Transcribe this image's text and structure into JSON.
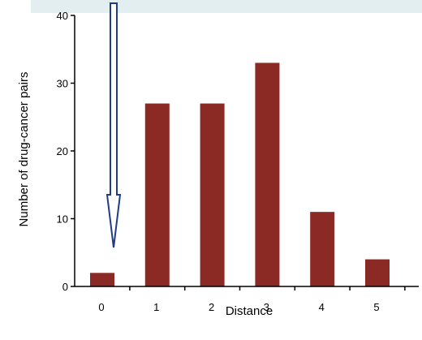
{
  "colors": {
    "bar": "#8b2a25",
    "axis": "#000000",
    "arrow_stroke": "#1f3b8a",
    "arrow_fill": "#ffffff",
    "top_band": "#e3eef1"
  },
  "annotation": {
    "type": "arrow-down",
    "points_to_category": "0"
  },
  "chart_data": {
    "type": "bar",
    "title": "",
    "xlabel": "Distance",
    "ylabel": "Number of drug-cancer pairs",
    "categories": [
      "0",
      "1",
      "2",
      "3",
      "4",
      "5"
    ],
    "values": [
      2,
      27,
      27,
      33,
      11,
      4
    ],
    "ylim": [
      0,
      40
    ],
    "yticks": [
      0,
      10,
      20,
      30,
      40
    ],
    "grid": false,
    "legend": "none"
  }
}
